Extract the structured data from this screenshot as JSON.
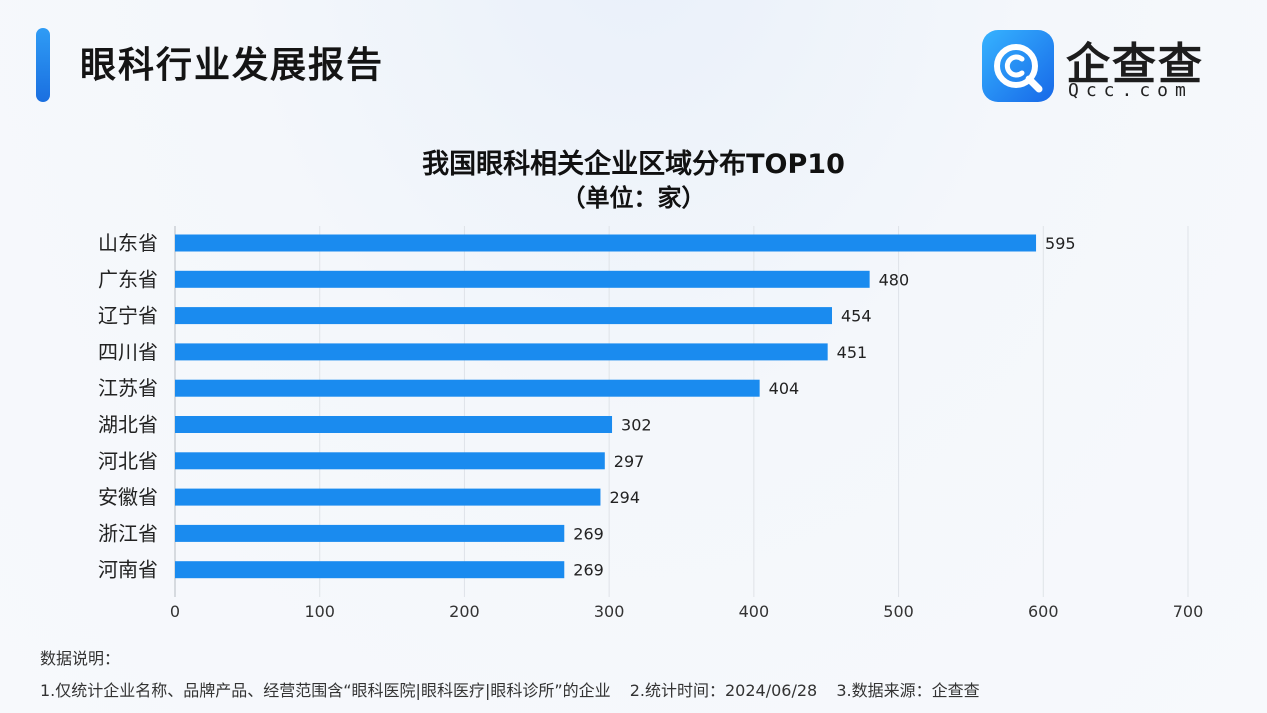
{
  "header": {
    "title": "眼科行业发展报告",
    "logo_name": "企查查",
    "logo_domain": "Qcc.com",
    "logo_icon": "qcc-magnifier-logo-icon"
  },
  "colors": {
    "bar": "#1a8bef",
    "accent": "#1f86f0",
    "grid": "#dfe3e8",
    "axis": "#b7bcc3"
  },
  "chart_data": {
    "type": "bar",
    "orientation": "horizontal",
    "title": "我国眼科相关企业区域分布TOP10",
    "unit": "（单位：家）",
    "categories": [
      "山东省",
      "广东省",
      "辽宁省",
      "四川省",
      "江苏省",
      "湖北省",
      "河北省",
      "安徽省",
      "浙江省",
      "河南省"
    ],
    "values": [
      595,
      480,
      454,
      451,
      404,
      302,
      297,
      294,
      269,
      269
    ],
    "xlim": [
      0,
      700
    ],
    "xticks": [
      0,
      100,
      200,
      300,
      400,
      500,
      600,
      700
    ],
    "grid": true,
    "legend": "none"
  },
  "notes": {
    "title": "数据说明：",
    "item1": "1.仅统计企业名称、品牌产品、经营范围含“眼科医院|眼科医疗|眼科诊所”的企业",
    "item2": "2.统计时间：2024/06/28",
    "item3": "3.数据来源：企查查"
  }
}
